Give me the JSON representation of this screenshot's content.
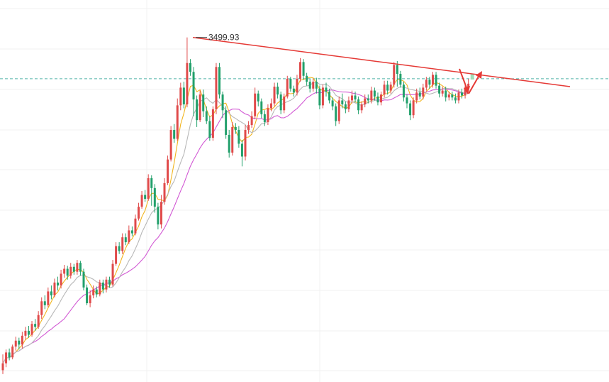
{
  "chart_data": {
    "type": "candlestick",
    "title": "",
    "xlabel": "",
    "ylabel": "",
    "ylim": [
      0,
      3880
    ],
    "grid": true,
    "legend": "none",
    "annotations": {
      "peak_label": "3499.93",
      "peak_value": 3499.93,
      "resistance_line": {
        "from_value": 3499.93,
        "to_value": 3000
      },
      "current_price_level": 3080
    },
    "moving_averages": [
      {
        "color": "#f2b51f"
      },
      {
        "color": "#d25ad4"
      },
      {
        "color": "#b8b8b8"
      }
    ],
    "candles": [
      [
        120,
        190,
        80,
        280
      ],
      [
        190,
        300,
        150,
        330
      ],
      [
        300,
        250,
        220,
        340
      ],
      [
        250,
        360,
        230,
        380
      ],
      [
        360,
        420,
        320,
        460
      ],
      [
        420,
        380,
        330,
        450
      ],
      [
        380,
        470,
        340,
        510
      ],
      [
        470,
        520,
        430,
        560
      ],
      [
        520,
        480,
        450,
        570
      ],
      [
        480,
        590,
        460,
        620
      ],
      [
        590,
        560,
        520,
        640
      ],
      [
        560,
        680,
        540,
        720
      ],
      [
        680,
        820,
        640,
        860
      ],
      [
        820,
        780,
        740,
        880
      ],
      [
        780,
        920,
        760,
        960
      ],
      [
        920,
        880,
        840,
        980
      ],
      [
        880,
        1010,
        860,
        1050
      ],
      [
        1010,
        980,
        930,
        1070
      ],
      [
        980,
        1100,
        950,
        1140
      ],
      [
        1100,
        1150,
        1060,
        1190
      ],
      [
        1150,
        1080,
        1040,
        1180
      ],
      [
        1080,
        1170,
        1050,
        1210
      ],
      [
        1170,
        1120,
        1090,
        1200
      ],
      [
        1120,
        1210,
        1090,
        1240
      ],
      [
        1210,
        1120,
        1080,
        1230
      ],
      [
        1120,
        960,
        930,
        1150
      ],
      [
        960,
        800,
        780,
        990
      ],
      [
        800,
        880,
        760,
        930
      ],
      [
        880,
        940,
        850,
        980
      ],
      [
        940,
        890,
        860,
        970
      ],
      [
        890,
        1010,
        870,
        1040
      ],
      [
        1010,
        940,
        900,
        1040
      ],
      [
        940,
        1040,
        910,
        1070
      ],
      [
        1040,
        990,
        960,
        1070
      ],
      [
        990,
        1200,
        970,
        1240
      ],
      [
        1200,
        1380,
        1180,
        1420
      ],
      [
        1380,
        1330,
        1300,
        1420
      ],
      [
        1330,
        1470,
        1300,
        1510
      ],
      [
        1470,
        1420,
        1390,
        1510
      ],
      [
        1420,
        1540,
        1400,
        1590
      ],
      [
        1540,
        1510,
        1480,
        1580
      ],
      [
        1510,
        1660,
        1490,
        1700
      ],
      [
        1660,
        1780,
        1640,
        1820
      ],
      [
        1780,
        1900,
        1760,
        1940
      ],
      [
        1900,
        1860,
        1830,
        1950
      ],
      [
        1860,
        2070,
        1840,
        2110
      ],
      [
        2070,
        1970,
        1790,
        2100
      ],
      [
        1970,
        1780,
        1720,
        2010
      ],
      [
        1780,
        1600,
        1550,
        1820
      ],
      [
        1600,
        1830,
        1560,
        1900
      ],
      [
        1830,
        2020,
        1800,
        2070
      ],
      [
        2020,
        2260,
        2000,
        2300
      ],
      [
        2260,
        2560,
        2240,
        2600
      ],
      [
        2560,
        2470,
        2430,
        2620
      ],
      [
        2470,
        2810,
        2450,
        2880
      ],
      [
        2810,
        2990,
        2760,
        3040
      ],
      [
        2990,
        2820,
        2780,
        3050
      ],
      [
        2820,
        3240,
        2790,
        3500
      ],
      [
        3240,
        3150,
        3110,
        3280
      ],
      [
        3150,
        2870,
        2700,
        3200
      ],
      [
        2870,
        2660,
        2590,
        2910
      ],
      [
        2660,
        2920,
        2640,
        2960
      ],
      [
        2920,
        2750,
        2690,
        2970
      ],
      [
        2750,
        2650,
        2620,
        2800
      ],
      [
        2650,
        2480,
        2450,
        2700
      ],
      [
        2480,
        2770,
        2450,
        2800
      ],
      [
        2770,
        3200,
        2720,
        3240
      ],
      [
        3200,
        2920,
        2880,
        3240
      ],
      [
        2920,
        2760,
        2680,
        2950
      ],
      [
        2760,
        2510,
        2470,
        2800
      ],
      [
        2510,
        2330,
        2280,
        2560
      ],
      [
        2330,
        2590,
        2300,
        2640
      ],
      [
        2590,
        2560,
        2520,
        2630
      ],
      [
        2560,
        2420,
        2380,
        2600
      ],
      [
        2420,
        2290,
        2190,
        2460
      ],
      [
        2290,
        2560,
        2250,
        2610
      ],
      [
        2560,
        2610,
        2520,
        2650
      ],
      [
        2610,
        2700,
        2580,
        2750
      ],
      [
        2700,
        2930,
        2670,
        2990
      ],
      [
        2930,
        2850,
        2800,
        2960
      ],
      [
        2850,
        2720,
        2680,
        2880
      ],
      [
        2720,
        2640,
        2600,
        2760
      ],
      [
        2640,
        2780,
        2610,
        2820
      ],
      [
        2780,
        2830,
        2750,
        2880
      ],
      [
        2830,
        3000,
        2800,
        3040
      ],
      [
        3000,
        2920,
        2880,
        3040
      ],
      [
        2920,
        2760,
        2720,
        2950
      ],
      [
        2760,
        2900,
        2730,
        2930
      ],
      [
        2900,
        3080,
        2880,
        3110
      ],
      [
        3080,
        2980,
        2950,
        3100
      ],
      [
        2980,
        2940,
        2900,
        3010
      ],
      [
        2940,
        3080,
        2910,
        3120
      ],
      [
        3080,
        3250,
        3050,
        3290
      ],
      [
        3250,
        3110,
        3070,
        3280
      ],
      [
        3110,
        3050,
        3010,
        3140
      ],
      [
        3050,
        2980,
        2940,
        3080
      ],
      [
        2980,
        3050,
        2950,
        3080
      ],
      [
        3050,
        2980,
        2930,
        3090
      ],
      [
        2980,
        2810,
        2770,
        3010
      ],
      [
        2810,
        2990,
        2780,
        3020
      ],
      [
        2990,
        2950,
        2900,
        3040
      ],
      [
        2950,
        2860,
        2830,
        2980
      ],
      [
        2860,
        2800,
        2760,
        2890
      ],
      [
        2800,
        2650,
        2600,
        2830
      ],
      [
        2650,
        2860,
        2620,
        2900
      ],
      [
        2860,
        2820,
        2780,
        2930
      ],
      [
        2820,
        2770,
        2730,
        2850
      ],
      [
        2770,
        2860,
        2740,
        2900
      ],
      [
        2860,
        2910,
        2830,
        2960
      ],
      [
        2910,
        2870,
        2840,
        2950
      ],
      [
        2870,
        2760,
        2720,
        2900
      ],
      [
        2760,
        2820,
        2730,
        2850
      ],
      [
        2820,
        2880,
        2790,
        2920
      ],
      [
        2880,
        2860,
        2830,
        2920
      ],
      [
        2860,
        2960,
        2830,
        3000
      ],
      [
        2960,
        2900,
        2860,
        2990
      ],
      [
        2900,
        2840,
        2810,
        2940
      ],
      [
        2840,
        2920,
        2810,
        2950
      ],
      [
        2920,
        3020,
        2890,
        3060
      ],
      [
        3020,
        2960,
        2920,
        3060
      ],
      [
        2960,
        3020,
        2930,
        3050
      ],
      [
        3020,
        3220,
        2990,
        3250
      ],
      [
        3220,
        3130,
        3000,
        3260
      ],
      [
        3130,
        3020,
        2990,
        3160
      ],
      [
        3020,
        2890,
        2850,
        3050
      ],
      [
        2890,
        2830,
        2780,
        2920
      ],
      [
        2830,
        2710,
        2660,
        2860
      ],
      [
        2710,
        2860,
        2680,
        2890
      ],
      [
        2860,
        2940,
        2830,
        2980
      ],
      [
        2940,
        2900,
        2870,
        2990
      ],
      [
        2900,
        2990,
        2870,
        3030
      ],
      [
        2990,
        3070,
        2960,
        3100
      ],
      [
        3070,
        3020,
        2980,
        3100
      ],
      [
        3020,
        3120,
        2990,
        3150
      ],
      [
        3120,
        3010,
        2980,
        3150
      ],
      [
        3010,
        2930,
        2890,
        3040
      ],
      [
        2930,
        2960,
        2900,
        3000
      ],
      [
        2960,
        2890,
        2850,
        3000
      ],
      [
        2890,
        2920,
        2860,
        2950
      ],
      [
        2920,
        2890,
        2860,
        2950
      ],
      [
        2890,
        2860,
        2830,
        2930
      ],
      [
        2860,
        2940,
        2830,
        2970
      ],
      [
        2940,
        2910,
        2880,
        2980
      ],
      [
        2910,
        2990,
        2880,
        3020
      ],
      [
        2990,
        3030,
        2960,
        3080
      ]
    ]
  }
}
